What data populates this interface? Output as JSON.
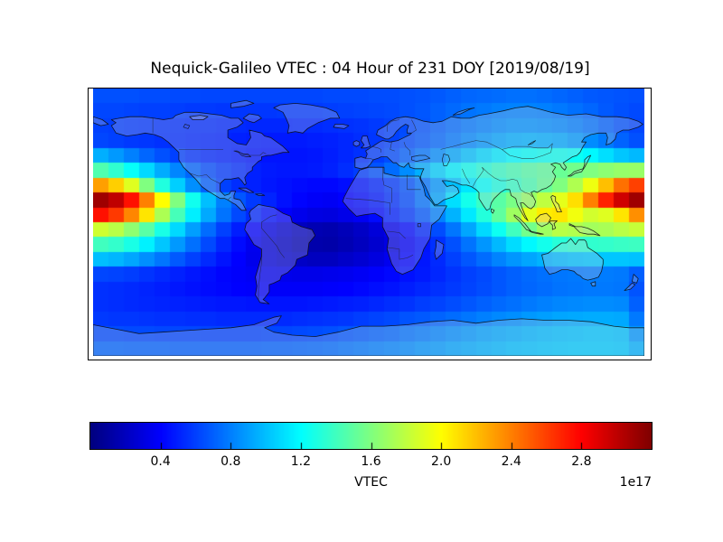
{
  "title": "Nequick-Galileo VTEC : 04 Hour of 231 DOY [2019/08/19]",
  "colors": {
    "background": "#ffffff",
    "frame": "#000000",
    "text": "#000000"
  },
  "chart_data": {
    "type": "heatmap",
    "title": "Nequick-Galileo VTEC : 04 Hour of 231 DOY [2019/08/19]",
    "projection": "equirectangular world map",
    "colormap": "jet",
    "vmin": 0.0,
    "vmax": 3.2,
    "colorbar": {
      "label": "VTEC",
      "scale_label": "1e17",
      "orientation": "horizontal",
      "ticks": [
        0.4,
        0.8,
        1.2,
        1.6,
        2.0,
        2.4,
        2.8
      ]
    },
    "grid": {
      "lon_min": -180,
      "lon_max": 180,
      "lat_min": -90,
      "lat_max": 90,
      "n_lon": 36,
      "n_lat": 18,
      "row_order": "north-to-south"
    },
    "values": [
      [
        0.65,
        0.65,
        0.65,
        0.64,
        0.64,
        0.63,
        0.63,
        0.62,
        0.62,
        0.62,
        0.62,
        0.62,
        0.62,
        0.62,
        0.62,
        0.63,
        0.63,
        0.63,
        0.64,
        0.64,
        0.65,
        0.66,
        0.68,
        0.7,
        0.72,
        0.73,
        0.74,
        0.75,
        0.75,
        0.74,
        0.72,
        0.7,
        0.68,
        0.67,
        0.66,
        0.65
      ],
      [
        0.62,
        0.62,
        0.61,
        0.6,
        0.6,
        0.59,
        0.58,
        0.58,
        0.57,
        0.57,
        0.57,
        0.57,
        0.58,
        0.58,
        0.58,
        0.59,
        0.6,
        0.61,
        0.62,
        0.63,
        0.65,
        0.67,
        0.7,
        0.73,
        0.76,
        0.78,
        0.8,
        0.81,
        0.81,
        0.8,
        0.78,
        0.75,
        0.72,
        0.68,
        0.65,
        0.63
      ],
      [
        0.6,
        0.59,
        0.58,
        0.57,
        0.56,
        0.55,
        0.54,
        0.54,
        0.53,
        0.53,
        0.52,
        0.52,
        0.52,
        0.53,
        0.53,
        0.54,
        0.55,
        0.56,
        0.58,
        0.6,
        0.63,
        0.66,
        0.7,
        0.74,
        0.78,
        0.81,
        0.84,
        0.86,
        0.86,
        0.85,
        0.83,
        0.8,
        0.76,
        0.71,
        0.66,
        0.62
      ],
      [
        0.62,
        0.6,
        0.58,
        0.57,
        0.55,
        0.54,
        0.53,
        0.52,
        0.51,
        0.5,
        0.49,
        0.48,
        0.48,
        0.48,
        0.49,
        0.5,
        0.52,
        0.54,
        0.57,
        0.6,
        0.64,
        0.68,
        0.73,
        0.78,
        0.83,
        0.88,
        0.92,
        0.95,
        0.96,
        0.95,
        0.93,
        0.89,
        0.84,
        0.78,
        0.71,
        0.65
      ],
      [
        0.95,
        0.88,
        0.8,
        0.72,
        0.65,
        0.6,
        0.56,
        0.53,
        0.51,
        0.49,
        0.47,
        0.46,
        0.46,
        0.46,
        0.47,
        0.49,
        0.52,
        0.55,
        0.59,
        0.64,
        0.7,
        0.77,
        0.85,
        0.93,
        1.01,
        1.08,
        1.14,
        1.19,
        1.22,
        1.24,
        1.25,
        1.23,
        1.18,
        1.1,
        1.02,
        0.98
      ],
      [
        1.45,
        1.35,
        1.22,
        1.08,
        0.94,
        0.82,
        0.72,
        0.64,
        0.58,
        0.54,
        0.5,
        0.48,
        0.47,
        0.47,
        0.48,
        0.5,
        0.54,
        0.59,
        0.66,
        0.74,
        0.84,
        0.95,
        1.06,
        1.16,
        1.25,
        1.32,
        1.38,
        1.43,
        1.47,
        1.5,
        1.53,
        1.56,
        1.6,
        1.64,
        1.67,
        1.68
      ],
      [
        2.3,
        2.15,
        1.9,
        1.6,
        1.3,
        1.05,
        0.85,
        0.7,
        0.6,
        0.54,
        0.5,
        0.47,
        0.45,
        0.43,
        0.42,
        0.42,
        0.44,
        0.47,
        0.52,
        0.58,
        0.66,
        0.76,
        0.88,
        1.0,
        1.12,
        1.22,
        1.3,
        1.38,
        1.44,
        1.52,
        1.6,
        1.75,
        1.95,
        2.2,
        2.45,
        2.6
      ],
      [
        3.1,
        3.0,
        2.75,
        2.4,
        2.0,
        1.6,
        1.25,
        1.0,
        0.8,
        0.67,
        0.58,
        0.51,
        0.45,
        0.41,
        0.38,
        0.37,
        0.4,
        0.43,
        0.48,
        0.55,
        0.64,
        0.76,
        0.92,
        1.1,
        1.26,
        1.38,
        1.48,
        1.58,
        1.68,
        1.8,
        1.92,
        2.1,
        2.4,
        2.7,
        2.95,
        3.1
      ],
      [
        2.75,
        2.62,
        2.38,
        2.08,
        1.74,
        1.42,
        1.15,
        0.93,
        0.76,
        0.63,
        0.53,
        0.45,
        0.39,
        0.34,
        0.31,
        0.3,
        0.33,
        0.37,
        0.43,
        0.5,
        0.58,
        0.68,
        0.81,
        0.96,
        1.13,
        1.31,
        1.5,
        1.7,
        1.92,
        2.06,
        2.08,
        1.96,
        1.86,
        1.9,
        2.08,
        2.35
      ],
      [
        1.85,
        1.78,
        1.65,
        1.48,
        1.28,
        1.08,
        0.9,
        0.74,
        0.6,
        0.49,
        0.4,
        0.32,
        0.26,
        0.2,
        0.16,
        0.15,
        0.18,
        0.22,
        0.28,
        0.35,
        0.43,
        0.53,
        0.64,
        0.77,
        0.92,
        1.08,
        1.24,
        1.4,
        1.56,
        1.7,
        1.78,
        1.76,
        1.71,
        1.73,
        1.78,
        1.82
      ],
      [
        1.4,
        1.36,
        1.28,
        1.16,
        1.02,
        0.88,
        0.75,
        0.63,
        0.52,
        0.43,
        0.35,
        0.28,
        0.22,
        0.17,
        0.14,
        0.13,
        0.16,
        0.2,
        0.25,
        0.31,
        0.38,
        0.46,
        0.55,
        0.65,
        0.76,
        0.87,
        0.98,
        1.09,
        1.18,
        1.26,
        1.32,
        1.35,
        1.35,
        1.36,
        1.38,
        1.39
      ],
      [
        1.0,
        0.97,
        0.92,
        0.85,
        0.77,
        0.68,
        0.6,
        0.53,
        0.46,
        0.4,
        0.34,
        0.29,
        0.25,
        0.22,
        0.2,
        0.2,
        0.23,
        0.26,
        0.3,
        0.35,
        0.41,
        0.47,
        0.53,
        0.6,
        0.67,
        0.74,
        0.81,
        0.87,
        0.92,
        0.96,
        0.99,
        1.01,
        1.02,
        1.02,
        1.02,
        1.01
      ],
      [
        0.62,
        0.61,
        0.59,
        0.56,
        0.53,
        0.5,
        0.47,
        0.44,
        0.41,
        0.39,
        0.37,
        0.35,
        0.34,
        0.33,
        0.33,
        0.34,
        0.35,
        0.37,
        0.39,
        0.42,
        0.45,
        0.48,
        0.52,
        0.56,
        0.6,
        0.63,
        0.67,
        0.7,
        0.73,
        0.75,
        0.77,
        0.78,
        0.79,
        0.79,
        0.78,
        0.7
      ],
      [
        0.55,
        0.54,
        0.53,
        0.51,
        0.49,
        0.47,
        0.45,
        0.43,
        0.42,
        0.4,
        0.39,
        0.38,
        0.38,
        0.38,
        0.38,
        0.39,
        0.4,
        0.42,
        0.44,
        0.46,
        0.49,
        0.52,
        0.55,
        0.58,
        0.61,
        0.64,
        0.67,
        0.7,
        0.72,
        0.74,
        0.76,
        0.77,
        0.78,
        0.78,
        0.77,
        0.66
      ],
      [
        0.55,
        0.54,
        0.53,
        0.52,
        0.51,
        0.5,
        0.49,
        0.48,
        0.47,
        0.47,
        0.46,
        0.46,
        0.46,
        0.46,
        0.47,
        0.48,
        0.49,
        0.5,
        0.52,
        0.54,
        0.56,
        0.59,
        0.61,
        0.64,
        0.67,
        0.7,
        0.73,
        0.75,
        0.78,
        0.8,
        0.82,
        0.83,
        0.84,
        0.84,
        0.83,
        0.7
      ],
      [
        0.58,
        0.57,
        0.57,
        0.56,
        0.55,
        0.55,
        0.54,
        0.54,
        0.53,
        0.53,
        0.53,
        0.53,
        0.53,
        0.54,
        0.55,
        0.56,
        0.57,
        0.59,
        0.61,
        0.63,
        0.66,
        0.68,
        0.71,
        0.74,
        0.77,
        0.8,
        0.83,
        0.85,
        0.88,
        0.9,
        0.92,
        0.93,
        0.94,
        0.94,
        0.93,
        0.78
      ],
      [
        0.64,
        0.64,
        0.63,
        0.63,
        0.62,
        0.62,
        0.62,
        0.61,
        0.61,
        0.61,
        0.61,
        0.62,
        0.62,
        0.63,
        0.64,
        0.65,
        0.67,
        0.69,
        0.71,
        0.73,
        0.76,
        0.79,
        0.82,
        0.85,
        0.88,
        0.91,
        0.93,
        0.95,
        0.97,
        0.99,
        1.0,
        1.01,
        1.02,
        1.02,
        1.01,
        0.88
      ],
      [
        0.72,
        0.72,
        0.71,
        0.71,
        0.71,
        0.7,
        0.7,
        0.7,
        0.7,
        0.7,
        0.7,
        0.71,
        0.71,
        0.72,
        0.73,
        0.74,
        0.76,
        0.78,
        0.8,
        0.82,
        0.84,
        0.87,
        0.89,
        0.92,
        0.94,
        0.96,
        0.98,
        1.0,
        1.01,
        1.02,
        1.03,
        1.04,
        1.04,
        1.04,
        1.03,
        0.96
      ]
    ]
  }
}
